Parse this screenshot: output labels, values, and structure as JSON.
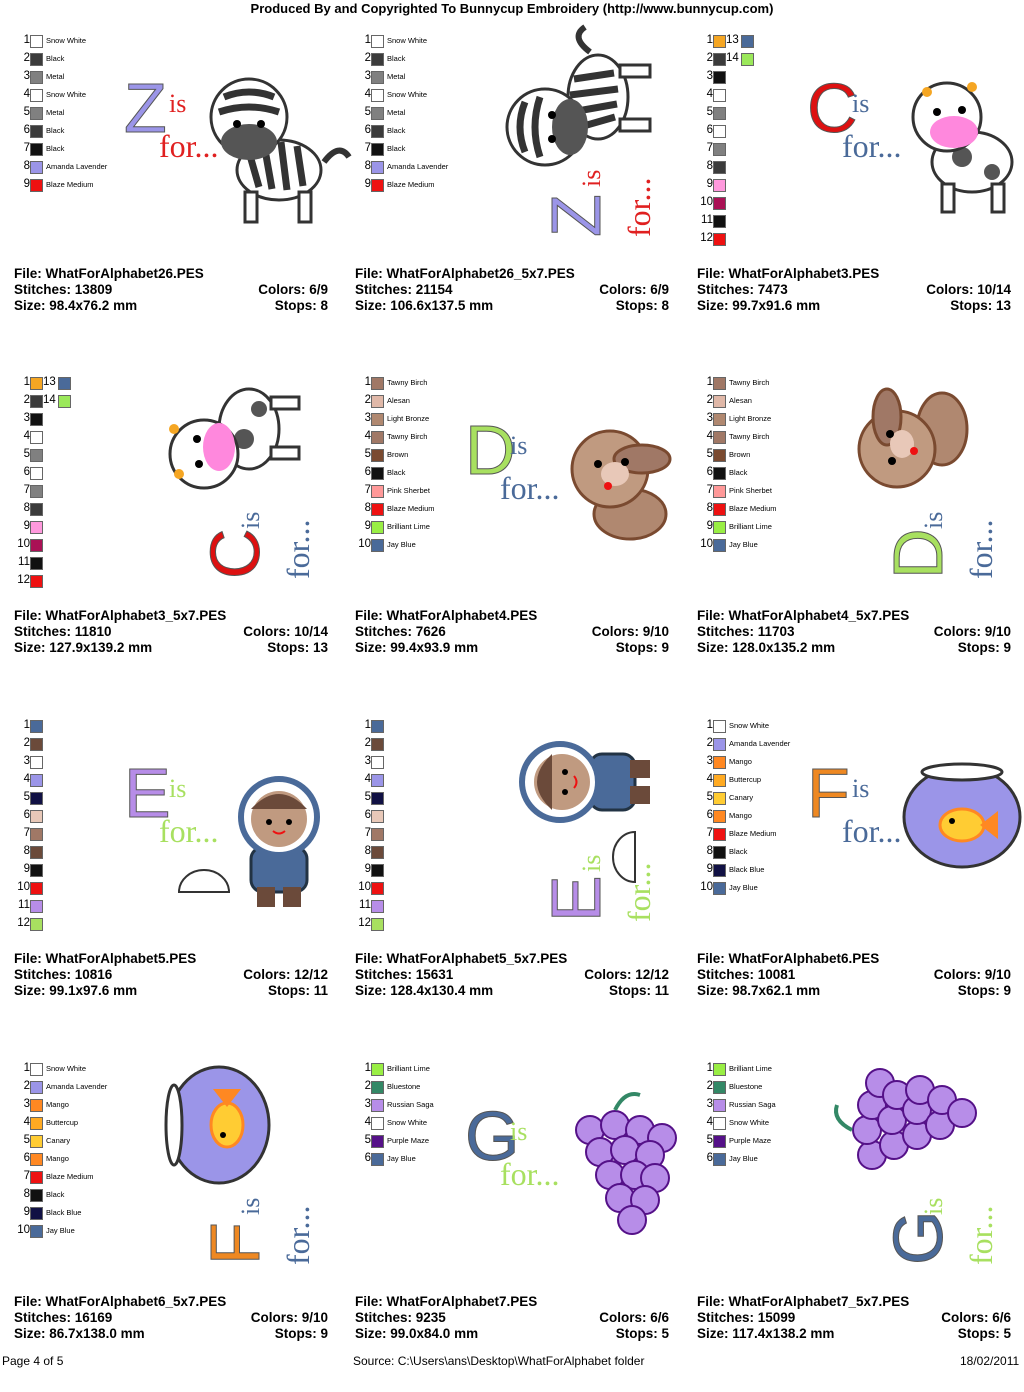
{
  "header": "Produced By and Copyrighted To Bunnycup Embroidery (http://www.bunnycup.com)",
  "footer": {
    "page": "Page 4 of 5",
    "source": "Source: C:\\Users\\ans\\Desktop\\WhatForAlphabet folder",
    "date": "18/02/2011"
  },
  "cells": [
    {
      "letter": "Z",
      "file": "File: WhatForAlphabet26.PES",
      "stitches": "Stitches: 13809",
      "colors": "Colors: 6/9",
      "size": "Size: 98.4x76.2 mm",
      "stops": "Stops: 8",
      "rot": false,
      "letter_color": "#9b95e8",
      "text_color": "#e02020",
      "pic": "zebra",
      "palette": [
        {
          "n": "1",
          "c": "#ffffff",
          "name": "Snow White"
        },
        {
          "n": "2",
          "c": "#3b3b3b",
          "name": "Black"
        },
        {
          "n": "3",
          "c": "#808080",
          "name": "Metal"
        },
        {
          "n": "4",
          "c": "#ffffff",
          "name": "Snow White"
        },
        {
          "n": "5",
          "c": "#808080",
          "name": "Metal"
        },
        {
          "n": "6",
          "c": "#3b3b3b",
          "name": "Black"
        },
        {
          "n": "7",
          "c": "#111111",
          "name": "Black"
        },
        {
          "n": "8",
          "c": "#9b95e8",
          "name": "Amanda Lavender"
        },
        {
          "n": "9",
          "c": "#ee1111",
          "name": "Blaze Medium"
        }
      ]
    },
    {
      "letter": "Z",
      "file": "File: WhatForAlphabet26_5x7.PES",
      "stitches": "Stitches: 21154",
      "colors": "Colors: 6/9",
      "size": "Size: 106.6x137.5 mm",
      "stops": "Stops: 8",
      "rot": true,
      "letter_color": "#9b95e8",
      "text_color": "#e02020",
      "pic": "zebra",
      "palette": [
        {
          "n": "1",
          "c": "#ffffff",
          "name": "Snow White"
        },
        {
          "n": "2",
          "c": "#3b3b3b",
          "name": "Black"
        },
        {
          "n": "3",
          "c": "#808080",
          "name": "Metal"
        },
        {
          "n": "4",
          "c": "#ffffff",
          "name": "Snow White"
        },
        {
          "n": "5",
          "c": "#808080",
          "name": "Metal"
        },
        {
          "n": "6",
          "c": "#3b3b3b",
          "name": "Black"
        },
        {
          "n": "7",
          "c": "#111111",
          "name": "Black"
        },
        {
          "n": "8",
          "c": "#9b95e8",
          "name": "Amanda Lavender"
        },
        {
          "n": "9",
          "c": "#ee1111",
          "name": "Blaze Medium"
        }
      ]
    },
    {
      "letter": "C",
      "file": "File: WhatForAlphabet3.PES",
      "stitches": "Stitches: 7473",
      "colors": "Colors: 10/14",
      "size": "Size: 99.7x91.6 mm",
      "stops": "Stops: 13",
      "rot": false,
      "letter_color": "#dd1111",
      "text_color": "#4a6a99",
      "pic": "cow",
      "palette": [
        {
          "n": "1",
          "c": "#f5a623",
          "name": "",
          "n2": "13",
          "c2": "#4a6a99"
        },
        {
          "n": "2",
          "c": "#3b3b3b",
          "name": "",
          "n2": "14",
          "c2": "#9be85a"
        },
        {
          "n": "3",
          "c": "#111111",
          "name": ""
        },
        {
          "n": "4",
          "c": "#ffffff",
          "name": ""
        },
        {
          "n": "5",
          "c": "#808080",
          "name": ""
        },
        {
          "n": "6",
          "c": "#ffffff",
          "name": ""
        },
        {
          "n": "7",
          "c": "#808080",
          "name": ""
        },
        {
          "n": "8",
          "c": "#3b3b3b",
          "name": ""
        },
        {
          "n": "9",
          "c": "#ff99dd",
          "name": ""
        },
        {
          "n": "10",
          "c": "#aa1155",
          "name": ""
        },
        {
          "n": "11",
          "c": "#111111",
          "name": ""
        },
        {
          "n": "12",
          "c": "#ee1111",
          "name": ""
        }
      ]
    },
    {
      "letter": "C",
      "file": "File: WhatForAlphabet3_5x7.PES",
      "stitches": "Stitches: 11810",
      "colors": "Colors: 10/14",
      "size": "Size: 127.9x139.2 mm",
      "stops": "Stops: 13",
      "rot": true,
      "letter_color": "#dd1111",
      "text_color": "#4a6a99",
      "pic": "cow",
      "palette": [
        {
          "n": "1",
          "c": "#f5a623",
          "name": "",
          "n2": "13",
          "c2": "#4a6a99"
        },
        {
          "n": "2",
          "c": "#3b3b3b",
          "name": "",
          "n2": "14",
          "c2": "#9be85a"
        },
        {
          "n": "3",
          "c": "#111111",
          "name": ""
        },
        {
          "n": "4",
          "c": "#ffffff",
          "name": ""
        },
        {
          "n": "5",
          "c": "#808080",
          "name": ""
        },
        {
          "n": "6",
          "c": "#ffffff",
          "name": ""
        },
        {
          "n": "7",
          "c": "#808080",
          "name": ""
        },
        {
          "n": "8",
          "c": "#3b3b3b",
          "name": ""
        },
        {
          "n": "9",
          "c": "#ff99dd",
          "name": ""
        },
        {
          "n": "10",
          "c": "#aa1155",
          "name": ""
        },
        {
          "n": "11",
          "c": "#111111",
          "name": ""
        },
        {
          "n": "12",
          "c": "#ee1111",
          "name": ""
        }
      ]
    },
    {
      "letter": "D",
      "file": "File: WhatForAlphabet4.PES",
      "stitches": "Stitches: 7626",
      "colors": "Colors: 9/10",
      "size": "Size: 99.4x93.9 mm",
      "stops": "Stops: 9",
      "rot": false,
      "letter_color": "#a8e060",
      "text_color": "#4a6a99",
      "pic": "dog",
      "palette": [
        {
          "n": "1",
          "c": "#a07866",
          "name": "Tawny Birch"
        },
        {
          "n": "2",
          "c": "#e0b8a8",
          "name": "Alesan"
        },
        {
          "n": "3",
          "c": "#b08870",
          "name": "Light Bronze"
        },
        {
          "n": "4",
          "c": "#a07866",
          "name": "Tawny Birch"
        },
        {
          "n": "5",
          "c": "#7a4a30",
          "name": "Brown"
        },
        {
          "n": "6",
          "c": "#111111",
          "name": "Black"
        },
        {
          "n": "7",
          "c": "#ff9999",
          "name": "Pink Sherbet"
        },
        {
          "n": "8",
          "c": "#ee1111",
          "name": "Blaze Medium"
        },
        {
          "n": "9",
          "c": "#99ee44",
          "name": "Brilliant Lime"
        },
        {
          "n": "10",
          "c": "#4a6a99",
          "name": "Jay Blue"
        }
      ]
    },
    {
      "letter": "D",
      "file": "File: WhatForAlphabet4_5x7.PES",
      "stitches": "Stitches: 11703",
      "colors": "Colors: 9/10",
      "size": "Size: 128.0x135.2 mm",
      "stops": "Stops: 9",
      "rot": true,
      "letter_color": "#a8e060",
      "text_color": "#4a6a99",
      "pic": "dog",
      "palette": [
        {
          "n": "1",
          "c": "#a07866",
          "name": "Tawny Birch"
        },
        {
          "n": "2",
          "c": "#e0b8a8",
          "name": "Alesan"
        },
        {
          "n": "3",
          "c": "#b08870",
          "name": "Light Bronze"
        },
        {
          "n": "4",
          "c": "#a07866",
          "name": "Tawny Birch"
        },
        {
          "n": "5",
          "c": "#7a4a30",
          "name": "Brown"
        },
        {
          "n": "6",
          "c": "#111111",
          "name": "Black"
        },
        {
          "n": "7",
          "c": "#ff9999",
          "name": "Pink Sherbet"
        },
        {
          "n": "8",
          "c": "#ee1111",
          "name": "Blaze Medium"
        },
        {
          "n": "9",
          "c": "#99ee44",
          "name": "Brilliant Lime"
        },
        {
          "n": "10",
          "c": "#4a6a99",
          "name": "Jay Blue"
        }
      ]
    },
    {
      "letter": "E",
      "file": "File: WhatForAlphabet5.PES",
      "stitches": "Stitches: 10816",
      "colors": "Colors: 12/12",
      "size": "Size: 99.1x97.6 mm",
      "stops": "Stops: 11",
      "rot": false,
      "letter_color": "#b78de8",
      "text_color": "#a8e060",
      "pic": "eskimo",
      "palette": [
        {
          "n": "1",
          "c": "#4a6a99",
          "name": ""
        },
        {
          "n": "2",
          "c": "#6b4a3a",
          "name": ""
        },
        {
          "n": "3",
          "c": "#ffffff",
          "name": ""
        },
        {
          "n": "4",
          "c": "#9b95e8",
          "name": ""
        },
        {
          "n": "5",
          "c": "#111144",
          "name": ""
        },
        {
          "n": "6",
          "c": "#e8c8b8",
          "name": ""
        },
        {
          "n": "7",
          "c": "#a07866",
          "name": ""
        },
        {
          "n": "8",
          "c": "#6b4a3a",
          "name": ""
        },
        {
          "n": "9",
          "c": "#111111",
          "name": ""
        },
        {
          "n": "10",
          "c": "#ee1111",
          "name": ""
        },
        {
          "n": "11",
          "c": "#b78de8",
          "name": ""
        },
        {
          "n": "12",
          "c": "#a8e060",
          "name": ""
        }
      ]
    },
    {
      "letter": "E",
      "file": "File: WhatForAlphabet5_5x7.PES",
      "stitches": "Stitches: 15631",
      "colors": "Colors: 12/12",
      "size": "Size: 128.4x130.4 mm",
      "stops": "Stops: 11",
      "rot": true,
      "letter_color": "#b78de8",
      "text_color": "#a8e060",
      "pic": "eskimo",
      "palette": [
        {
          "n": "1",
          "c": "#4a6a99",
          "name": ""
        },
        {
          "n": "2",
          "c": "#6b4a3a",
          "name": ""
        },
        {
          "n": "3",
          "c": "#ffffff",
          "name": ""
        },
        {
          "n": "4",
          "c": "#9b95e8",
          "name": ""
        },
        {
          "n": "5",
          "c": "#111144",
          "name": ""
        },
        {
          "n": "6",
          "c": "#e8c8b8",
          "name": ""
        },
        {
          "n": "7",
          "c": "#a07866",
          "name": ""
        },
        {
          "n": "8",
          "c": "#6b4a3a",
          "name": ""
        },
        {
          "n": "9",
          "c": "#111111",
          "name": ""
        },
        {
          "n": "10",
          "c": "#ee1111",
          "name": ""
        },
        {
          "n": "11",
          "c": "#b78de8",
          "name": ""
        },
        {
          "n": "12",
          "c": "#a8e060",
          "name": ""
        }
      ]
    },
    {
      "letter": "F",
      "file": "File: WhatForAlphabet6.PES",
      "stitches": "Stitches: 10081",
      "colors": "Colors: 9/10",
      "size": "Size: 98.7x62.1 mm",
      "stops": "Stops: 9",
      "rot": false,
      "letter_color": "#ee8822",
      "text_color": "#4a6a99",
      "pic": "fish",
      "palette": [
        {
          "n": "1",
          "c": "#ffffff",
          "name": "Snow White"
        },
        {
          "n": "2",
          "c": "#9b95e8",
          "name": "Amanda Lavender"
        },
        {
          "n": "3",
          "c": "#ff8822",
          "name": "Mango"
        },
        {
          "n": "4",
          "c": "#ffaa22",
          "name": "Buttercup"
        },
        {
          "n": "5",
          "c": "#ffcc33",
          "name": "Canary"
        },
        {
          "n": "6",
          "c": "#ff8822",
          "name": "Mango"
        },
        {
          "n": "7",
          "c": "#ee1111",
          "name": "Blaze Medium"
        },
        {
          "n": "8",
          "c": "#111111",
          "name": "Black"
        },
        {
          "n": "9",
          "c": "#111144",
          "name": "Black Blue"
        },
        {
          "n": "10",
          "c": "#4a6a99",
          "name": "Jay Blue"
        }
      ]
    },
    {
      "letter": "F",
      "file": "File: WhatForAlphabet6_5x7.PES",
      "stitches": "Stitches: 16169",
      "colors": "Colors: 9/10",
      "size": "Size: 86.7x138.0 mm",
      "stops": "Stops: 9",
      "rot": true,
      "letter_color": "#ee8822",
      "text_color": "#4a6a99",
      "pic": "fish",
      "palette": [
        {
          "n": "1",
          "c": "#ffffff",
          "name": "Snow White"
        },
        {
          "n": "2",
          "c": "#9b95e8",
          "name": "Amanda Lavender"
        },
        {
          "n": "3",
          "c": "#ff8822",
          "name": "Mango"
        },
        {
          "n": "4",
          "c": "#ffaa22",
          "name": "Buttercup"
        },
        {
          "n": "5",
          "c": "#ffcc33",
          "name": "Canary"
        },
        {
          "n": "6",
          "c": "#ff8822",
          "name": "Mango"
        },
        {
          "n": "7",
          "c": "#ee1111",
          "name": "Blaze Medium"
        },
        {
          "n": "8",
          "c": "#111111",
          "name": "Black"
        },
        {
          "n": "9",
          "c": "#111144",
          "name": "Black Blue"
        },
        {
          "n": "10",
          "c": "#4a6a99",
          "name": "Jay Blue"
        }
      ]
    },
    {
      "letter": "G",
      "file": "File: WhatForAlphabet7.PES",
      "stitches": "Stitches: 9235",
      "colors": "Colors: 6/6",
      "size": "Size: 99.0x84.0 mm",
      "stops": "Stops: 5",
      "rot": false,
      "letter_color": "#4a6a99",
      "text_color": "#a8e060",
      "pic": "grapes",
      "palette": [
        {
          "n": "1",
          "c": "#99ee44",
          "name": "Brilliant Lime"
        },
        {
          "n": "2",
          "c": "#338866",
          "name": "Bluestone"
        },
        {
          "n": "3",
          "c": "#b78de8",
          "name": "Russian Saga"
        },
        {
          "n": "4",
          "c": "#ffffff",
          "name": "Snow White"
        },
        {
          "n": "5",
          "c": "#551188",
          "name": "Purple Maze"
        },
        {
          "n": "6",
          "c": "#4a6a99",
          "name": "Jay Blue"
        }
      ]
    },
    {
      "letter": "G",
      "file": "File: WhatForAlphabet7_5x7.PES",
      "stitches": "Stitches: 15099",
      "colors": "Colors: 6/6",
      "size": "Size: 117.4x138.2 mm",
      "stops": "Stops: 5",
      "rot": true,
      "letter_color": "#4a6a99",
      "text_color": "#a8e060",
      "pic": "grapes",
      "palette": [
        {
          "n": "1",
          "c": "#99ee44",
          "name": "Brilliant Lime"
        },
        {
          "n": "2",
          "c": "#338866",
          "name": "Bluestone"
        },
        {
          "n": "3",
          "c": "#b78de8",
          "name": "Russian Saga"
        },
        {
          "n": "4",
          "c": "#ffffff",
          "name": "Snow White"
        },
        {
          "n": "5",
          "c": "#551188",
          "name": "Purple Maze"
        },
        {
          "n": "6",
          "c": "#4a6a99",
          "name": "Jay Blue"
        }
      ]
    }
  ]
}
